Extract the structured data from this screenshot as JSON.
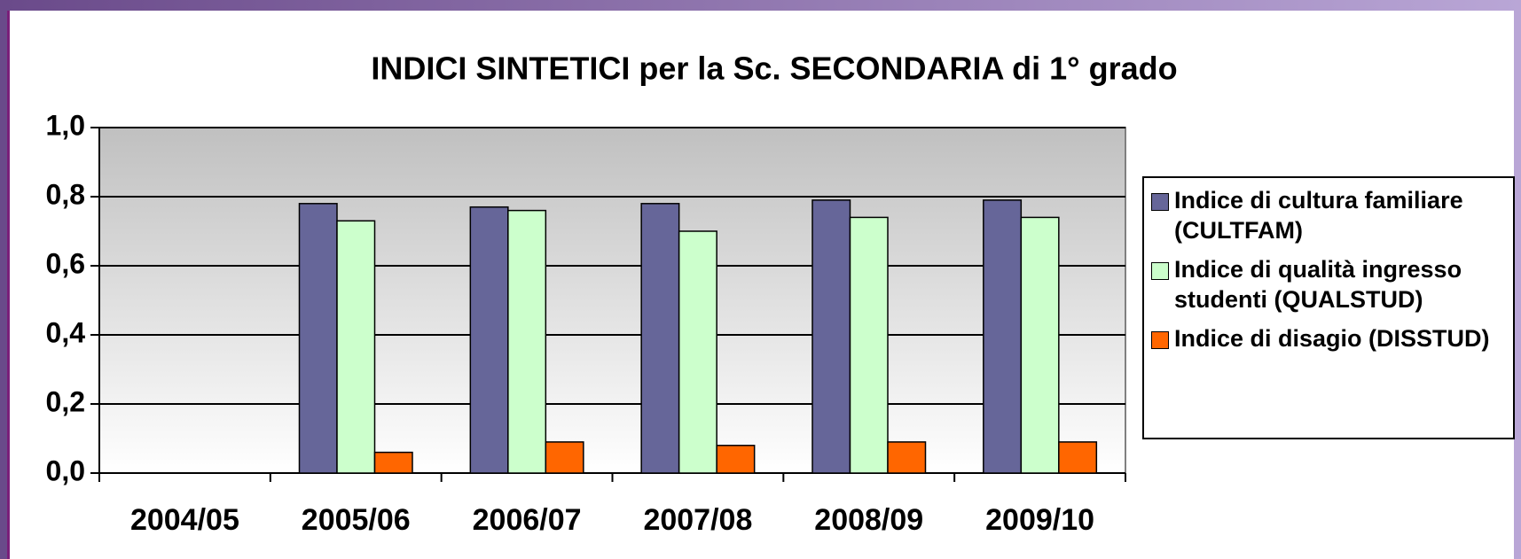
{
  "chart_data": {
    "type": "bar",
    "title": "INDICI SINTETICI per la Sc. SECONDARIA di 1° grado",
    "categories": [
      "2004/05",
      "2005/06",
      "2006/07",
      "2007/08",
      "2008/09",
      "2009/10"
    ],
    "series": [
      {
        "name": "Indice di cultura familiare (CULTFAM)",
        "color": "#666699",
        "values": [
          null,
          0.78,
          0.77,
          0.78,
          0.79,
          0.79
        ]
      },
      {
        "name": "Indice di qualità ingresso studenti (QUALSTUD)",
        "color": "#ccffcc",
        "values": [
          null,
          0.73,
          0.76,
          0.7,
          0.74,
          0.74
        ]
      },
      {
        "name": "Indice di disagio (DISSTUD)",
        "color": "#ff6600",
        "values": [
          null,
          0.06,
          0.09,
          0.08,
          0.09,
          0.09
        ]
      }
    ],
    "ylim": [
      0,
      1
    ],
    "yticks": [
      {
        "value": 0,
        "label": "0,0"
      },
      {
        "value": 0.2,
        "label": "0,2"
      },
      {
        "value": 0.4,
        "label": "0,4"
      },
      {
        "value": 0.6,
        "label": "0,6"
      },
      {
        "value": 0.8,
        "label": "0,8"
      },
      {
        "value": 1,
        "label": "1,0"
      }
    ],
    "grid": true,
    "legend": "right"
  }
}
